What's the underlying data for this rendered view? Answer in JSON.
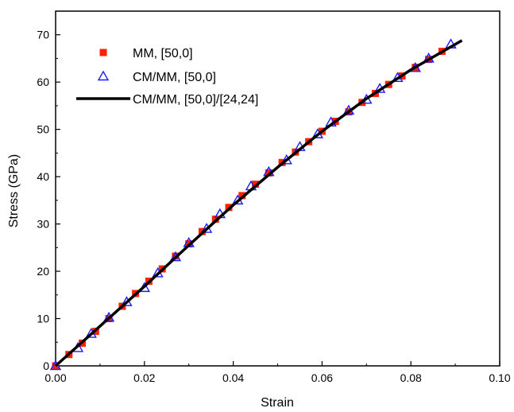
{
  "chart_data": {
    "type": "scatter",
    "title": "",
    "xlabel": "Strain",
    "ylabel": "Stress (GPa)",
    "xlim": [
      0,
      0.1
    ],
    "ylim": [
      0,
      75
    ],
    "x_ticks": [
      "0.00",
      "0.02",
      "0.04",
      "0.06",
      "0.08",
      "0.10"
    ],
    "y_ticks": [
      "0",
      "10",
      "20",
      "30",
      "40",
      "50",
      "60",
      "70"
    ],
    "legend_position": "top-left",
    "series": [
      {
        "name": "MM, [50,0]",
        "marker": "filled-square",
        "color": "#ff2200",
        "points": [
          [
            0.0,
            0.0
          ],
          [
            0.003,
            2.4
          ],
          [
            0.006,
            4.8
          ],
          [
            0.009,
            7.3
          ],
          [
            0.012,
            10.0
          ],
          [
            0.015,
            12.6
          ],
          [
            0.018,
            15.3
          ],
          [
            0.021,
            17.9
          ],
          [
            0.024,
            20.5
          ],
          [
            0.027,
            23.2
          ],
          [
            0.03,
            25.8
          ],
          [
            0.033,
            28.4
          ],
          [
            0.036,
            31.0
          ],
          [
            0.039,
            33.5
          ],
          [
            0.042,
            36.0
          ],
          [
            0.045,
            38.4
          ],
          [
            0.048,
            40.8
          ],
          [
            0.051,
            43.0
          ],
          [
            0.054,
            45.2
          ],
          [
            0.057,
            47.4
          ],
          [
            0.06,
            49.6
          ],
          [
            0.063,
            51.7
          ],
          [
            0.066,
            53.7
          ],
          [
            0.069,
            55.7
          ],
          [
            0.072,
            57.6
          ],
          [
            0.075,
            59.5
          ],
          [
            0.078,
            61.3
          ],
          [
            0.081,
            63.1
          ],
          [
            0.084,
            64.8
          ],
          [
            0.087,
            66.5
          ]
        ]
      },
      {
        "name": "CM/MM, [50,0]",
        "marker": "open-triangle",
        "color": "#1a1aff",
        "points": [
          [
            0.0,
            0.0
          ],
          [
            0.005,
            3.8
          ],
          [
            0.008,
            6.8
          ],
          [
            0.012,
            10.2
          ],
          [
            0.016,
            13.5
          ],
          [
            0.02,
            16.5
          ],
          [
            0.023,
            19.6
          ],
          [
            0.027,
            23.0
          ],
          [
            0.03,
            26.0
          ],
          [
            0.034,
            29.0
          ],
          [
            0.037,
            32.1
          ],
          [
            0.041,
            35.0
          ],
          [
            0.044,
            38.0
          ],
          [
            0.048,
            41.0
          ],
          [
            0.052,
            43.5
          ],
          [
            0.055,
            46.3
          ],
          [
            0.059,
            49.0
          ],
          [
            0.062,
            51.5
          ],
          [
            0.066,
            54.0
          ],
          [
            0.07,
            56.3
          ],
          [
            0.073,
            58.6
          ],
          [
            0.077,
            60.9
          ],
          [
            0.081,
            63.0
          ],
          [
            0.084,
            65.0
          ],
          [
            0.089,
            68.0
          ]
        ]
      },
      {
        "name": "CM/MM, [50,0]/[24,24]",
        "marker": "line",
        "color": "#000000",
        "points": [
          [
            0.0,
            0.0
          ],
          [
            0.01,
            8.4
          ],
          [
            0.02,
            16.8
          ],
          [
            0.03,
            25.5
          ],
          [
            0.04,
            34.0
          ],
          [
            0.05,
            42.0
          ],
          [
            0.06,
            49.6
          ],
          [
            0.07,
            56.5
          ],
          [
            0.08,
            62.6
          ],
          [
            0.0915,
            68.8
          ]
        ]
      }
    ]
  }
}
